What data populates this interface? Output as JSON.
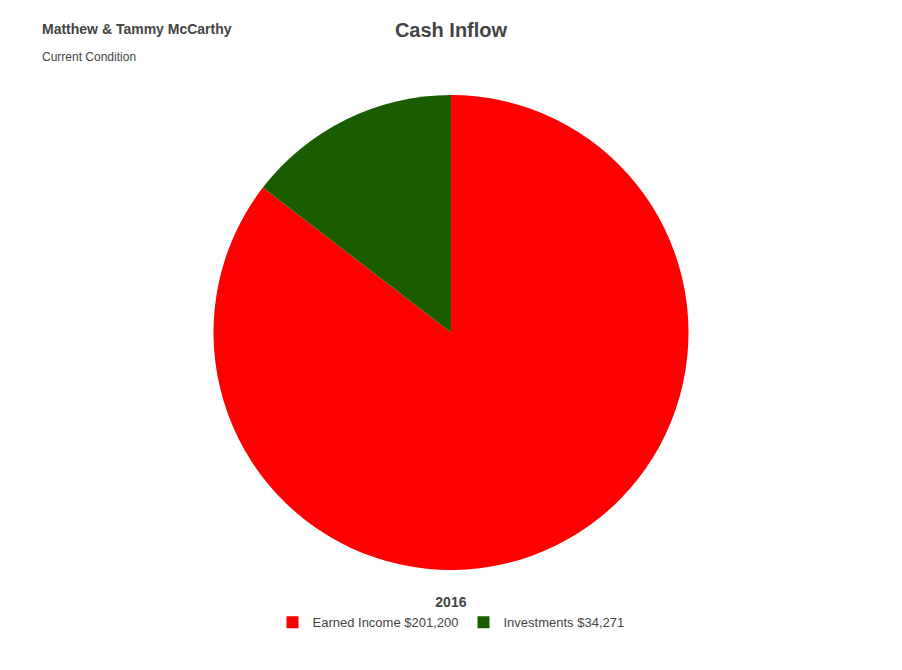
{
  "chart_data": {
    "type": "pie",
    "title": "Cash Inflow",
    "annotations": [
      "Matthew & Tammy McCarthy",
      "Current Condition",
      "2016"
    ],
    "categories": [
      "Earned Income $201,200",
      "Investments $34,271"
    ],
    "values": [
      201200,
      34271
    ],
    "colors": [
      "#ff0000",
      "#1a5c00"
    ],
    "legend": "bottom"
  }
}
